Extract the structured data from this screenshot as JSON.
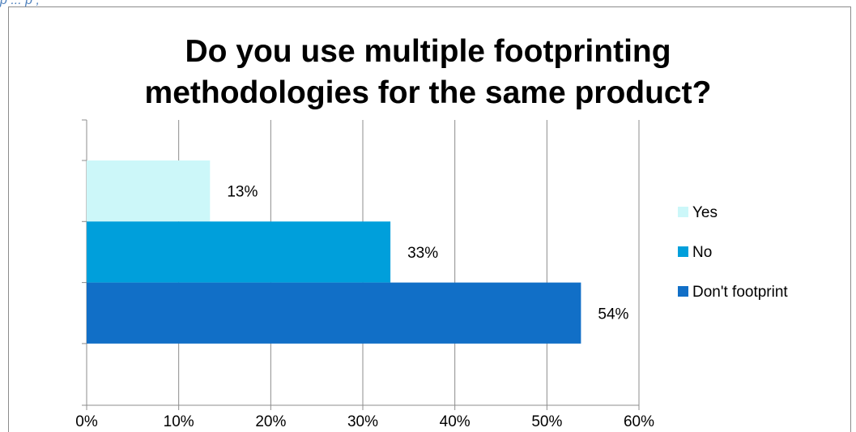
{
  "caption": "p  ... p , ",
  "chart_data": {
    "type": "bar",
    "orientation": "horizontal",
    "title_lines": [
      "Do you use multiple footprinting",
      "methodologies for the same product?"
    ],
    "series": [
      {
        "name": "Yes",
        "value": 13.4,
        "label": "13%",
        "color": "#ccf7f9"
      },
      {
        "name": "No",
        "value": 33,
        "label": "33%",
        "color": "#009fdb"
      },
      {
        "name": "Don't footprint",
        "value": 53.7,
        "label": "54%",
        "color": "#116fc7"
      }
    ],
    "xlim": [
      0,
      60
    ],
    "xticks": [
      0,
      10,
      20,
      30,
      40,
      50,
      60
    ],
    "xtick_labels": [
      "0%",
      "10%",
      "20%",
      "30%",
      "40%",
      "50%",
      "60%"
    ],
    "grid": "vertical",
    "legend": "right"
  }
}
